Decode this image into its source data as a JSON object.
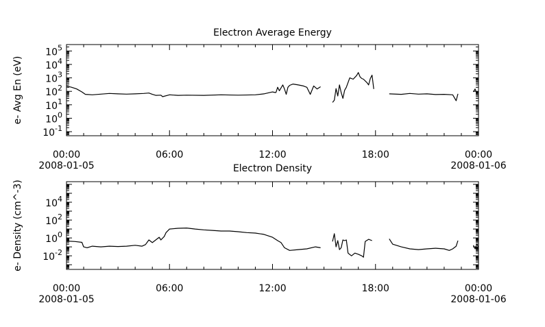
{
  "chart_data": [
    {
      "type": "line",
      "title": "Electron Average Energy",
      "ylabel": "e- Avg En (eV)",
      "yscale": "log",
      "ylim": [
        0.05,
        300000
      ],
      "xlim_hours": [
        0,
        24
      ],
      "x_tick_labels": [
        {
          "time": "00:00",
          "date": "2008-01-05"
        },
        {
          "time": "06:00",
          "date": ""
        },
        {
          "time": "12:00",
          "date": ""
        },
        {
          "time": "18:00",
          "date": ""
        },
        {
          "time": "00:00",
          "date": "2008-01-06"
        }
      ],
      "y_tick_labels": [
        {
          "base": "10",
          "exp": "5"
        },
        {
          "base": "10",
          "exp": "4"
        },
        {
          "base": "10",
          "exp": "3"
        },
        {
          "base": "10",
          "exp": "2"
        },
        {
          "base": "10",
          "exp": "1"
        },
        {
          "base": "10",
          "exp": "0"
        },
        {
          "base": "10",
          "exp": "-1"
        }
      ],
      "series": [
        {
          "segments": [
            [
              [
                0.0,
                250
              ],
              [
                0.3,
                200
              ],
              [
                0.6,
                150
              ],
              [
                0.9,
                90
              ],
              [
                1.1,
                60
              ],
              [
                1.5,
                55
              ],
              [
                2.0,
                62
              ],
              [
                2.5,
                70
              ],
              [
                3.0,
                65
              ],
              [
                3.5,
                62
              ],
              [
                4.0,
                65
              ],
              [
                4.5,
                70
              ],
              [
                4.8,
                75
              ],
              [
                5.0,
                60
              ],
              [
                5.2,
                50
              ],
              [
                5.5,
                52
              ],
              [
                5.6,
                40
              ],
              [
                6.0,
                55
              ],
              [
                6.5,
                50
              ],
              [
                7.0,
                52
              ],
              [
                8.0,
                50
              ],
              [
                9.0,
                55
              ],
              [
                10.0,
                52
              ],
              [
                11.0,
                55
              ],
              [
                11.5,
                65
              ],
              [
                12.0,
                90
              ],
              [
                12.2,
                80
              ]
            ],
            [
              [
                12.2,
                80
              ],
              [
                12.3,
                200
              ],
              [
                12.4,
                110
              ],
              [
                12.6,
                300
              ],
              [
                12.7,
                150
              ],
              [
                12.8,
                60
              ],
              [
                12.9,
                200
              ],
              [
                13.0,
                280
              ],
              [
                13.2,
                350
              ],
              [
                13.5,
                300
              ],
              [
                13.8,
                250
              ],
              [
                14.0,
                200
              ],
              [
                14.2,
                60
              ],
              [
                14.4,
                250
              ],
              [
                14.6,
                150
              ],
              [
                14.8,
                220
              ]
            ],
            [
              [
                15.5,
                15
              ],
              [
                15.6,
                22
              ],
              [
                15.7,
                160
              ],
              [
                15.8,
                45
              ],
              [
                15.9,
                300
              ],
              [
                16.0,
                80
              ],
              [
                16.1,
                30
              ],
              [
                16.2,
                120
              ],
              [
                16.3,
                200
              ],
              [
                16.5,
                1000
              ],
              [
                16.7,
                800
              ],
              [
                16.9,
                1500
              ],
              [
                17.0,
                2500
              ],
              [
                17.1,
                1200
              ],
              [
                17.2,
                900
              ],
              [
                17.3,
                800
              ],
              [
                17.5,
                450
              ],
              [
                17.6,
                300
              ],
              [
                17.7,
                900
              ],
              [
                17.8,
                1600
              ],
              [
                17.9,
                150
              ]
            ],
            [
              [
                18.8,
                65
              ],
              [
                19.5,
                60
              ],
              [
                20.0,
                70
              ],
              [
                20.5,
                62
              ],
              [
                21.0,
                65
              ],
              [
                21.5,
                58
              ],
              [
                22.0,
                60
              ],
              [
                22.5,
                55
              ],
              [
                22.7,
                20
              ],
              [
                22.8,
                65
              ]
            ],
            [
              [
                23.7,
                90
              ],
              [
                23.8,
                150
              ],
              [
                23.9,
                70
              ],
              [
                24.0,
                100
              ]
            ]
          ]
        }
      ]
    },
    {
      "type": "line",
      "title": "Electron Density",
      "ylabel": "e- Density (cm^-3)",
      "yscale": "log",
      "ylim": [
        0.0003,
        2000000
      ],
      "xlim_hours": [
        0,
        24
      ],
      "x_tick_labels": [
        {
          "time": "00:00",
          "date": "2008-01-05"
        },
        {
          "time": "06:00",
          "date": ""
        },
        {
          "time": "12:00",
          "date": ""
        },
        {
          "time": "18:00",
          "date": ""
        },
        {
          "time": "00:00",
          "date": "2008-01-06"
        }
      ],
      "y_tick_labels": [
        {
          "base": "10",
          "exp": "4"
        },
        {
          "base": "10",
          "exp": "2"
        },
        {
          "base": "10",
          "exp": "0"
        },
        {
          "base": "10",
          "exp": "-2"
        }
      ],
      "series": [
        {
          "segments": [
            [
              [
                0.0,
                0.45
              ],
              [
                0.5,
                0.4
              ],
              [
                0.9,
                0.32
              ],
              [
                1.0,
                0.1
              ],
              [
                1.2,
                0.08
              ],
              [
                1.5,
                0.12
              ],
              [
                2.0,
                0.1
              ],
              [
                2.5,
                0.12
              ],
              [
                3.0,
                0.11
              ],
              [
                3.5,
                0.12
              ],
              [
                4.0,
                0.15
              ],
              [
                4.4,
                0.12
              ],
              [
                4.6,
                0.18
              ],
              [
                4.8,
                0.6
              ],
              [
                5.0,
                0.3
              ],
              [
                5.2,
                0.6
              ],
              [
                5.4,
                1.2
              ],
              [
                5.5,
                0.6
              ],
              [
                5.7,
                1.5
              ],
              [
                5.8,
                4
              ],
              [
                6.0,
                10
              ],
              [
                6.5,
                12
              ],
              [
                7.0,
                13
              ],
              [
                7.5,
                10
              ],
              [
                8.0,
                8
              ],
              [
                8.5,
                7
              ],
              [
                9.0,
                6
              ],
              [
                9.5,
                6
              ],
              [
                10.0,
                5
              ],
              [
                10.5,
                4
              ],
              [
                11.0,
                3.5
              ],
              [
                11.5,
                2.5
              ],
              [
                12.0,
                1.2
              ],
              [
                12.3,
                0.5
              ],
              [
                12.5,
                0.3
              ],
              [
                12.7,
                0.08
              ],
              [
                13.0,
                0.04
              ],
              [
                13.5,
                0.05
              ],
              [
                14.0,
                0.06
              ],
              [
                14.5,
                0.1
              ],
              [
                14.8,
                0.08
              ]
            ],
            [
              [
                15.5,
                0.4
              ],
              [
                15.6,
                3
              ],
              [
                15.7,
                0.1
              ],
              [
                15.8,
                0.5
              ],
              [
                15.9,
                0.05
              ],
              [
                16.0,
                0.08
              ],
              [
                16.1,
                0.6
              ],
              [
                16.2,
                0.5
              ],
              [
                16.3,
                0.6
              ],
              [
                16.4,
                0.02
              ],
              [
                16.6,
                0.01
              ],
              [
                16.8,
                0.02
              ],
              [
                17.0,
                0.015
              ],
              [
                17.2,
                0.01
              ],
              [
                17.3,
                0.007
              ],
              [
                17.4,
                0.4
              ],
              [
                17.6,
                0.7
              ],
              [
                17.8,
                0.5
              ]
            ],
            [
              [
                18.8,
                0.8
              ],
              [
                19.0,
                0.2
              ],
              [
                19.5,
                0.1
              ],
              [
                20.0,
                0.06
              ],
              [
                20.5,
                0.05
              ],
              [
                21.0,
                0.06
              ],
              [
                21.5,
                0.07
              ],
              [
                22.0,
                0.06
              ],
              [
                22.3,
                0.04
              ],
              [
                22.5,
                0.06
              ],
              [
                22.7,
                0.12
              ],
              [
                22.8,
                0.5
              ]
            ],
            [
              [
                23.7,
                0.15
              ],
              [
                23.8,
                0.06
              ],
              [
                23.9,
                0.2
              ],
              [
                24.0,
                0.1
              ]
            ]
          ]
        }
      ]
    }
  ]
}
